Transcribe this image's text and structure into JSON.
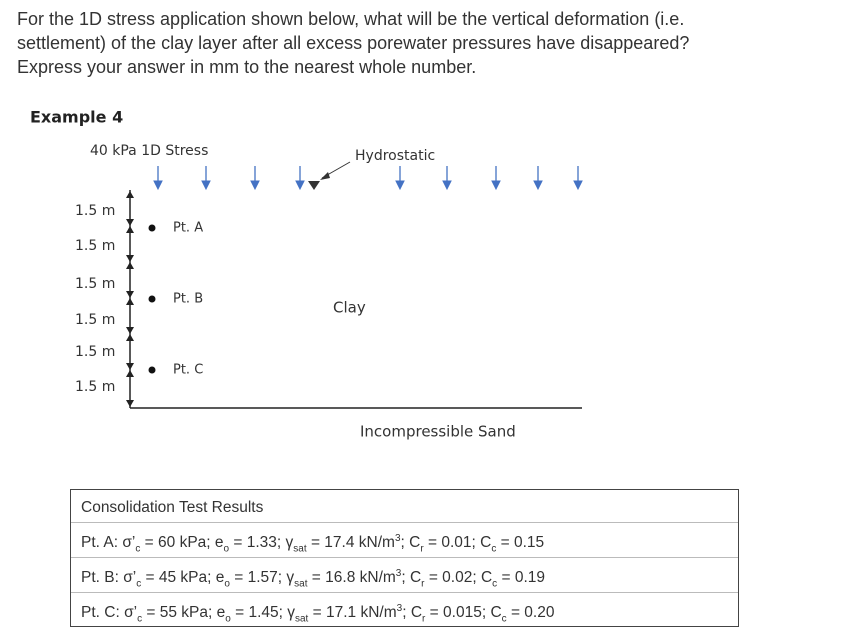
{
  "question": {
    "lines": [
      "For the 1D stress application shown below, what will be the vertical deformation (i.e.",
      "settlement) of the clay layer after all excess porewater pressures have disappeared?",
      "Express your answer in mm to the nearest whole number."
    ]
  },
  "example": {
    "title": "Example 4",
    "stress_label": "40 kPa 1D Stress",
    "water_label": "Hydrostatic",
    "depth_labels": [
      "1.5 m",
      "1.5 m",
      "1.5 m",
      "1.5 m",
      "1.5 m",
      "1.5 m"
    ],
    "points": [
      "Pt. A",
      "Pt. B",
      "Pt. C"
    ],
    "layer_label": "Clay",
    "base_label": "Incompressible Sand"
  },
  "table": {
    "title": "Consolidation Test Results",
    "rows": [
      [
        "Pt. A: σ’",
        "c",
        " = 60 kPa; e",
        "o",
        " = 1.33; γ",
        "sat",
        " = 17.4 kN/m",
        "3",
        "; C",
        "r",
        " = 0.01; C",
        "c",
        " = 0.15"
      ],
      [
        "Pt. B: σ’",
        "c",
        " = 45 kPa; e",
        "o",
        " = 1.57; γ",
        "sat",
        " = 16.8 kN/m",
        "3",
        "; C",
        "r",
        " = 0.02; C",
        "c",
        " = 0.19"
      ],
      [
        "Pt. C: σ’",
        "c",
        " = 55 kPa; e",
        "o",
        " = 1.45; γ",
        "sat",
        " = 17.1 kN/m",
        "3",
        "; C",
        "r",
        " = 0.015; C",
        "c",
        " = 0.20"
      ]
    ]
  }
}
